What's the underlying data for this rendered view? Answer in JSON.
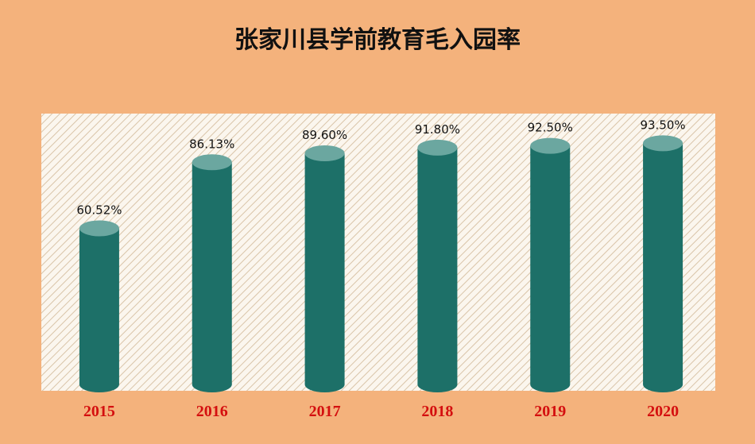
{
  "chart_data": {
    "type": "bar",
    "title": "张家川县学前教育毛入园率",
    "categories": [
      "2015",
      "2016",
      "2017",
      "2018",
      "2019",
      "2020"
    ],
    "values": [
      60.52,
      86.13,
      89.6,
      91.8,
      92.5,
      93.5
    ],
    "value_labels": [
      "60.52%",
      "86.13%",
      "89.60%",
      "91.80%",
      "92.50%",
      "93.50%"
    ],
    "color": "#1d7068",
    "ylim": [
      0,
      105
    ]
  }
}
